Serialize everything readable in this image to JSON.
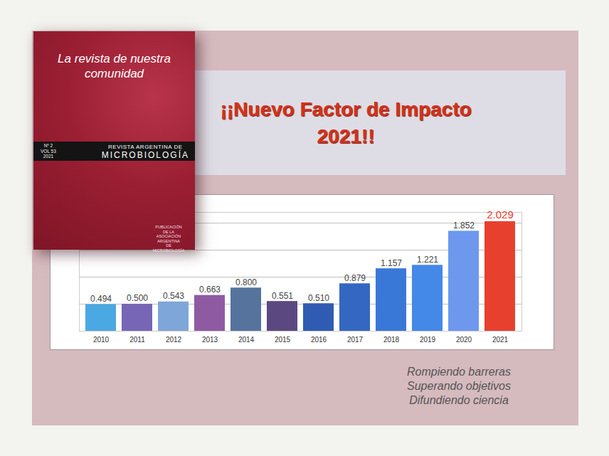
{
  "header": {
    "title": "¡¡Nuevo Factor de Impacto 2021!!"
  },
  "cover": {
    "tagline": "La revista de nuestra comunidad",
    "issue": [
      "Nº 2",
      "VOL 53",
      "2021"
    ],
    "journal_line1": "REVISTA ARGENTINA DE",
    "journal_line2": "MICROBIOLOGÍA",
    "publisher": [
      "PUBLICACIÓN",
      "DE LA",
      "ASOCIACIÓN ARGENTINA",
      "DE",
      "MICROBIOLOGÍA"
    ]
  },
  "chart_data": {
    "type": "bar",
    "categories": [
      "2010",
      "2011",
      "2012",
      "2013",
      "2014",
      "2015",
      "2016",
      "2017",
      "2018",
      "2019",
      "2020",
      "2021"
    ],
    "values": [
      0.494,
      0.5,
      0.543,
      0.663,
      0.8,
      0.551,
      0.51,
      0.879,
      1.157,
      1.221,
      1.852,
      2.029
    ],
    "value_labels": [
      "0.494",
      "0.500",
      "0.543",
      "0.663",
      "0.800",
      "0.551",
      "0.510",
      "0.879",
      "1.157",
      "1.221",
      "1.852",
      "2.029"
    ],
    "colors": [
      "#4aa8e2",
      "#7766b6",
      "#7fa6d8",
      "#8e5aa2",
      "#56739e",
      "#5c4880",
      "#2f5cb2",
      "#3467c2",
      "#3a78d8",
      "#4488e8",
      "#6d98ee",
      "#e8402e"
    ],
    "ylim": [
      0,
      2.2
    ],
    "yticks": [
      0,
      0.5,
      1,
      1.5,
      2
    ],
    "grid": true,
    "data_labels": true,
    "tick_labels": "x"
  },
  "caption": [
    "Rompiendo barreras",
    "Superando objetivos",
    "Difundiendo ciencia"
  ]
}
